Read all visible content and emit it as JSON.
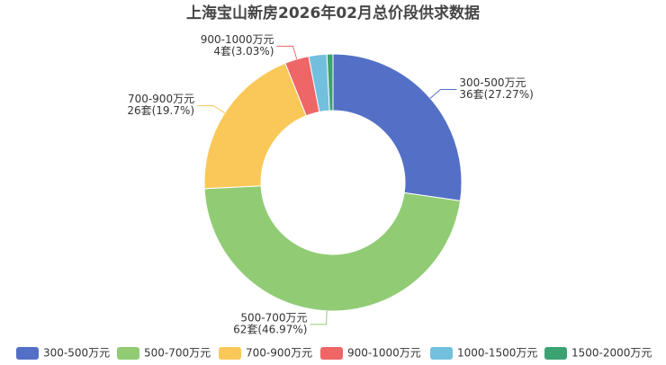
{
  "chart_data": {
    "type": "pie",
    "title": "上海宝山新房2026年02月总价段供求数据",
    "categories": [
      "300-500万元",
      "500-700万元",
      "700-900万元",
      "900-1000万元",
      "1000-1500万元",
      "1500-2000万元"
    ],
    "values": [
      36,
      62,
      26,
      4,
      3,
      1
    ],
    "value_labels": [
      "36套(27.27%)",
      "62套(46.97%)",
      "26套(19.7%)",
      "4套(3.03%)",
      null,
      null
    ],
    "colors": [
      "#5470c6",
      "#91cc75",
      "#fac858",
      "#ee6666",
      "#73c0de",
      "#3ba272"
    ],
    "donut": true,
    "legend": "bottom"
  }
}
